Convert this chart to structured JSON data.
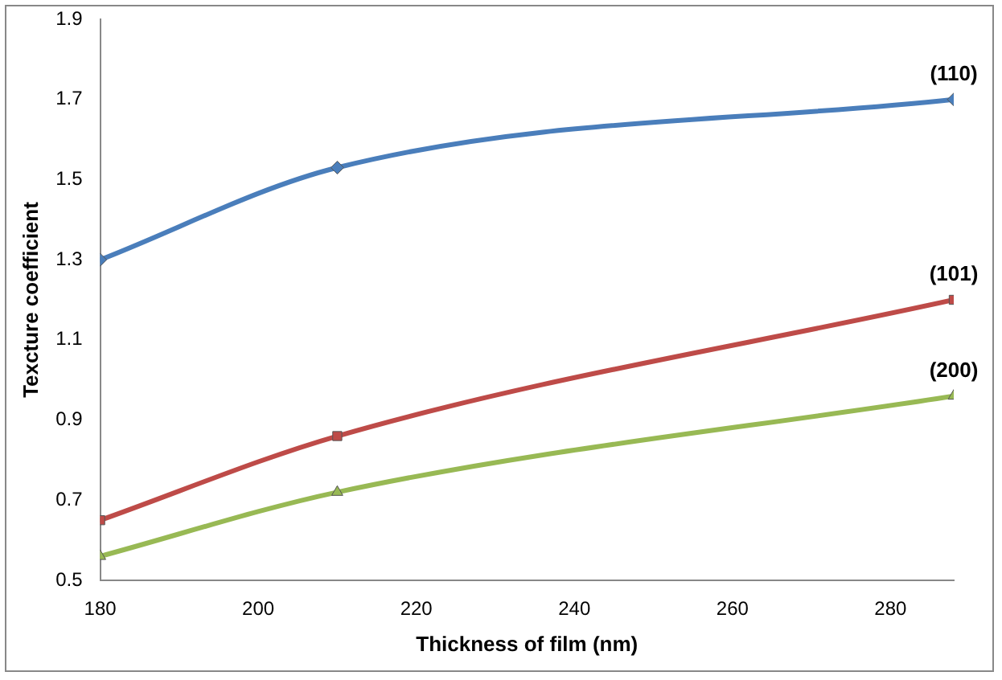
{
  "chart_data": {
    "type": "line",
    "xlabel": "Thickness of film (nm)",
    "ylabel": "Texcture coefficient",
    "x": [
      180,
      210,
      288
    ],
    "xlim": [
      180,
      288
    ],
    "xticks": [
      180,
      200,
      220,
      240,
      260,
      280
    ],
    "ylim": [
      0.5,
      1.9
    ],
    "yticks": [
      0.5,
      0.7,
      0.9,
      1.1,
      1.3,
      1.5,
      1.7,
      1.9
    ],
    "grid": false,
    "legend": false,
    "line_style": "solid",
    "series": [
      {
        "name": "(110)",
        "color": "#4a7ebb",
        "marker": "diamond",
        "values": [
          1.3,
          1.53,
          1.7
        ]
      },
      {
        "name": "(101)",
        "color": "#be4b48",
        "marker": "square",
        "values": [
          0.65,
          0.86,
          1.2
        ]
      },
      {
        "name": "(200)",
        "color": "#98b954",
        "marker": "triangle",
        "values": [
          0.56,
          0.72,
          0.96
        ]
      }
    ]
  }
}
